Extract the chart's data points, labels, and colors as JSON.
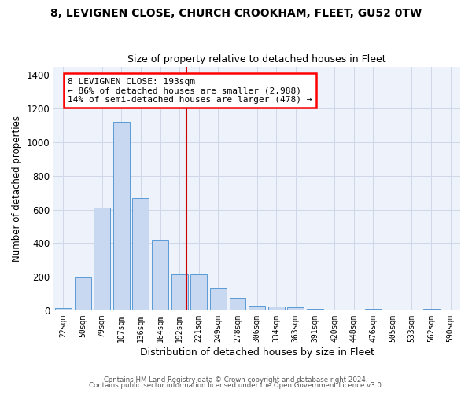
{
  "title1": "8, LEVIGNEN CLOSE, CHURCH CROOKHAM, FLEET, GU52 0TW",
  "title2": "Size of property relative to detached houses in Fleet",
  "xlabel": "Distribution of detached houses by size in Fleet",
  "ylabel": "Number of detached properties",
  "categories": [
    "22sqm",
    "50sqm",
    "79sqm",
    "107sqm",
    "136sqm",
    "164sqm",
    "192sqm",
    "221sqm",
    "249sqm",
    "278sqm",
    "306sqm",
    "334sqm",
    "363sqm",
    "391sqm",
    "420sqm",
    "448sqm",
    "476sqm",
    "505sqm",
    "533sqm",
    "562sqm",
    "590sqm"
  ],
  "values": [
    15,
    195,
    610,
    1120,
    670,
    420,
    215,
    215,
    130,
    75,
    30,
    25,
    20,
    10,
    0,
    0,
    10,
    0,
    0,
    10,
    0
  ],
  "bar_color": "#c8d8f0",
  "bar_edge_color": "#5a9ad5",
  "grid_color": "#d0d8e8",
  "bg_color": "#eef2fa",
  "vline_x_index": 6,
  "vline_color": "#cc0000",
  "annotation_text": "8 LEVIGNEN CLOSE: 193sqm\n← 86% of detached houses are smaller (2,988)\n14% of semi-detached houses are larger (478) →",
  "ylim": [
    0,
    1450
  ],
  "yticks": [
    0,
    200,
    400,
    600,
    800,
    1000,
    1200,
    1400
  ],
  "footer1": "Contains HM Land Registry data © Crown copyright and database right 2024.",
  "footer2": "Contains public sector information licensed under the Open Government Licence v3.0."
}
